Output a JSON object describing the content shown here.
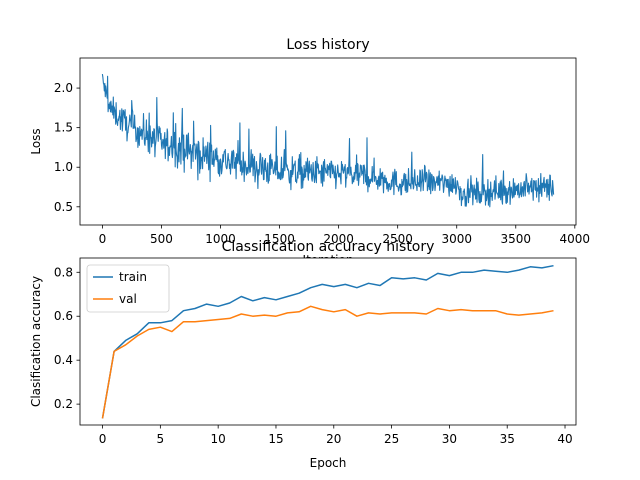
{
  "chart_data": [
    {
      "type": "line",
      "title": "Loss history",
      "xlabel": "Iteration",
      "ylabel": "Loss",
      "xlim": [
        -190,
        4010
      ],
      "ylim": [
        0.27,
        2.38
      ],
      "xticks": [
        0,
        500,
        1000,
        1500,
        2000,
        2500,
        3000,
        3500,
        4000
      ],
      "yticks": [
        0.5,
        1.0,
        1.5,
        2.0
      ],
      "ytick_labels": [
        "0.5",
        "1.0",
        "1.5",
        "2.0"
      ],
      "grid": false,
      "series": [
        {
          "color": "#1f77b4",
          "x_range": [
            0,
            3820
          ],
          "trend": {
            "x": [
              0,
              60,
              200,
              500,
              1000,
              1500,
              2000,
              2300,
              2500,
              3000,
              3050,
              3300,
              3820
            ],
            "mean": [
              2.1,
              1.75,
              1.55,
              1.3,
              1.1,
              0.95,
              0.92,
              0.88,
              0.8,
              0.8,
              0.65,
              0.7,
              0.75
            ],
            "spread": [
              0.2,
              0.2,
              0.25,
              0.3,
              0.28,
              0.28,
              0.25,
              0.25,
              0.22,
              0.22,
              0.22,
              0.22,
              0.22
            ]
          }
        }
      ]
    },
    {
      "type": "line",
      "title": "Classification accuracy history",
      "xlabel": "Epoch",
      "ylabel": "Clasification accuracy",
      "xlim": [
        -1.95,
        40.95
      ],
      "ylim": [
        0.105,
        0.865
      ],
      "xticks": [
        0,
        5,
        10,
        15,
        20,
        25,
        30,
        35,
        40
      ],
      "yticks": [
        0.2,
        0.4,
        0.6,
        0.8
      ],
      "ytick_labels": [
        "0.2",
        "0.4",
        "0.6",
        "0.8"
      ],
      "grid": false,
      "legend": "upper-left",
      "categories": [
        0,
        1,
        2,
        3,
        4,
        5,
        6,
        7,
        8,
        9,
        10,
        11,
        12,
        13,
        14,
        15,
        16,
        17,
        18,
        19,
        20,
        21,
        22,
        23,
        24,
        25,
        26,
        27,
        28,
        29,
        30,
        31,
        32,
        33,
        34,
        35,
        36,
        37,
        38,
        39
      ],
      "series": [
        {
          "name": "train",
          "color": "#1f77b4",
          "values": [
            0.135,
            0.44,
            0.49,
            0.52,
            0.57,
            0.57,
            0.58,
            0.625,
            0.635,
            0.655,
            0.645,
            0.66,
            0.69,
            0.67,
            0.685,
            0.675,
            0.69,
            0.705,
            0.73,
            0.745,
            0.735,
            0.745,
            0.73,
            0.75,
            0.74,
            0.775,
            0.77,
            0.775,
            0.765,
            0.795,
            0.785,
            0.8,
            0.8,
            0.81,
            0.805,
            0.8,
            0.81,
            0.825,
            0.82,
            0.83
          ]
        },
        {
          "name": "val",
          "color": "#ff7f0e",
          "values": [
            0.135,
            0.44,
            0.47,
            0.51,
            0.54,
            0.55,
            0.53,
            0.575,
            0.575,
            0.58,
            0.585,
            0.59,
            0.61,
            0.6,
            0.605,
            0.6,
            0.615,
            0.62,
            0.645,
            0.63,
            0.62,
            0.63,
            0.6,
            0.615,
            0.61,
            0.615,
            0.615,
            0.615,
            0.61,
            0.635,
            0.625,
            0.63,
            0.625,
            0.625,
            0.625,
            0.61,
            0.605,
            0.61,
            0.615,
            0.625
          ]
        }
      ]
    }
  ]
}
